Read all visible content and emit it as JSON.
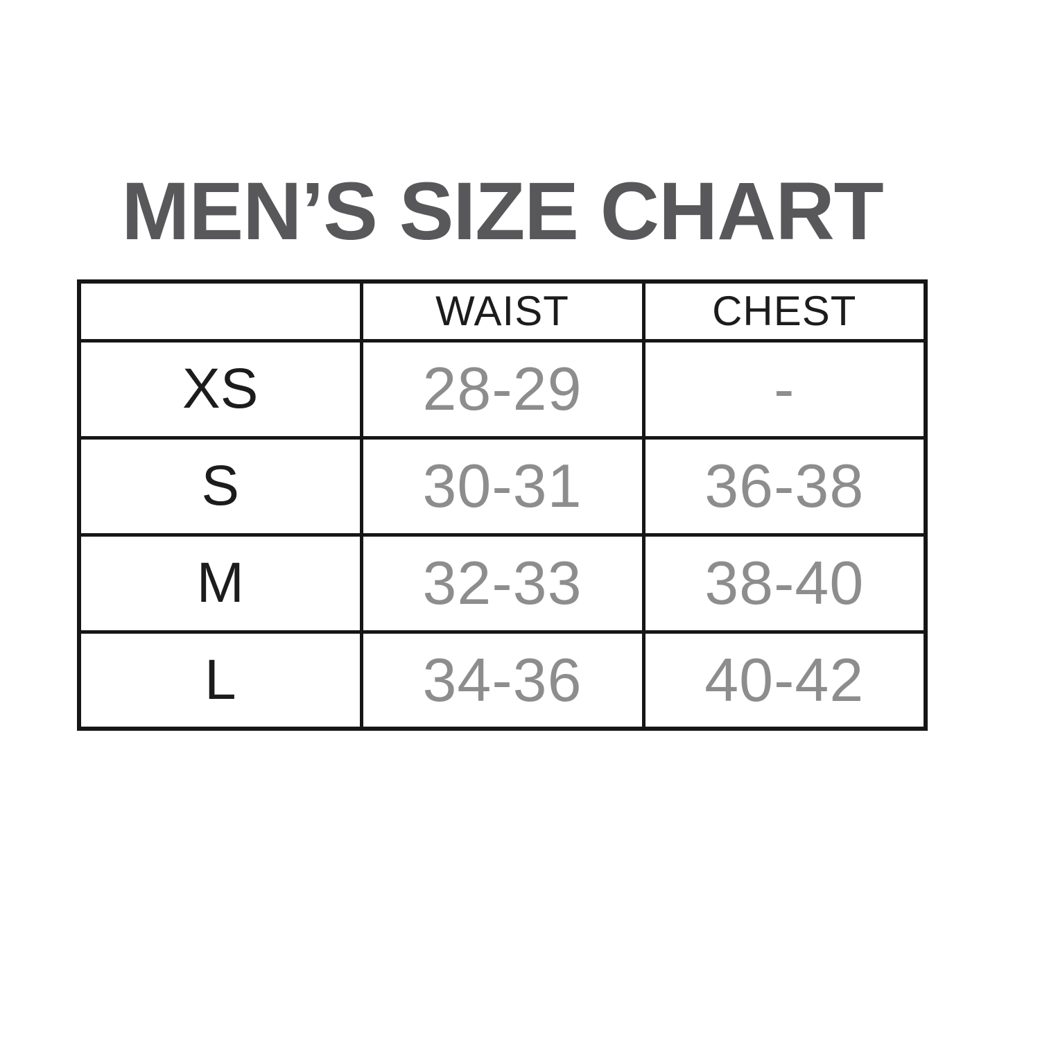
{
  "title": {
    "text": "MEN’S SIZE CHART"
  },
  "colors": {
    "background": "#ffffff",
    "title": "#58585a",
    "border": "#161616",
    "header_text": "#1c1c1c",
    "size_text": "#1c1c1c",
    "value_text": "#8d8d8d"
  },
  "table": {
    "header": {
      "corner": "",
      "columns": [
        "WAIST",
        "CHEST"
      ]
    },
    "rows": [
      {
        "size": "XS",
        "waist": "28-29",
        "chest": "-"
      },
      {
        "size": "S",
        "waist": "30-31",
        "chest": "36-38"
      },
      {
        "size": "M",
        "waist": "32-33",
        "chest": "38-40"
      },
      {
        "size": "L",
        "waist": "34-36",
        "chest": "40-42"
      }
    ]
  },
  "chart_data": {
    "type": "table",
    "title": "MEN’S SIZE CHART",
    "columns": [
      "",
      "WAIST",
      "CHEST"
    ],
    "rows": [
      [
        "XS",
        "28-29",
        "-"
      ],
      [
        "S",
        "30-31",
        "36-38"
      ],
      [
        "M",
        "32-33",
        "38-40"
      ],
      [
        "L",
        "34-36",
        "40-42"
      ]
    ]
  }
}
